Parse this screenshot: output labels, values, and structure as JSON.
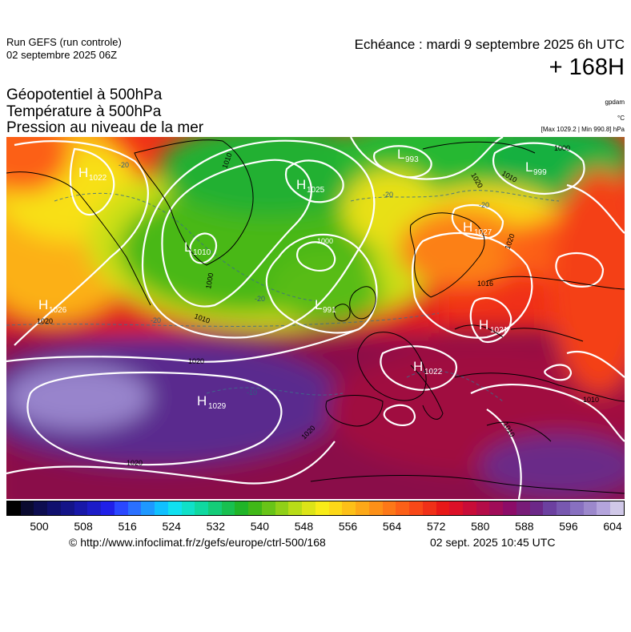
{
  "header": {
    "run_title": "Run GEFS (run controle)",
    "run_date": "02 septembre 2025 06Z",
    "echeance": "Echéance : mardi 9 septembre 2025 6h UTC",
    "lead_time": "+ 168H",
    "param_line1": "Géopotentiel à 500hPa",
    "param_line2": "Température à 500hPa",
    "param_line3": "Pression au niveau de la mer",
    "unit_gpdam": "gpdam",
    "unit_celsius": "°C",
    "pressure_range": "[Max 1029.2 | Min 990.8] hPa"
  },
  "map": {
    "pressure_centers": [
      {
        "type": "H",
        "value": "1022"
      },
      {
        "type": "H",
        "value": "1025"
      },
      {
        "type": "H",
        "value": "1029"
      },
      {
        "type": "H",
        "value": "1026"
      },
      {
        "type": "H",
        "value": "1027"
      },
      {
        "type": "H",
        "value": "1021"
      },
      {
        "type": "H",
        "value": "1022"
      },
      {
        "type": "L",
        "value": "1010"
      },
      {
        "type": "L",
        "value": "991"
      },
      {
        "type": "L",
        "value": "993"
      },
      {
        "type": "L",
        "value": "999"
      }
    ],
    "isobar_labels": [
      "1010",
      "1000",
      "1020",
      "1020",
      "1020",
      "1010",
      "1010",
      "1016",
      "1000",
      "1020",
      "1010",
      "1020",
      "1000",
      "1020",
      "1010"
    ],
    "isotherm_labels": [
      "-20",
      "-20",
      "-20",
      "-20",
      "-10",
      "-20"
    ]
  },
  "colorbar": {
    "ticks": [
      "500",
      "508",
      "516",
      "524",
      "532",
      "540",
      "548",
      "556",
      "564",
      "572",
      "580",
      "588",
      "596",
      "604"
    ],
    "colors": [
      "#000000",
      "#0a0a30",
      "#0d0d50",
      "#10106e",
      "#141488",
      "#1818a8",
      "#1c1cc8",
      "#2020e8",
      "#2a48ff",
      "#2a70ff",
      "#1e98ff",
      "#10c0ff",
      "#10e0f0",
      "#10e0c8",
      "#10d8a0",
      "#14cc78",
      "#18c050",
      "#20b428",
      "#40b818",
      "#68c418",
      "#90d018",
      "#b8dc18",
      "#dce418",
      "#f8ec18",
      "#fcd818",
      "#fcc018",
      "#fca818",
      "#fc9018",
      "#fc7818",
      "#fc6018",
      "#f84818",
      "#f03018",
      "#e81818",
      "#dc1028",
      "#c80c38",
      "#b40c48",
      "#a00c58",
      "#8c0c68",
      "#781c78",
      "#6c2888",
      "#6c40a0",
      "#7858b0",
      "#8870c0",
      "#9c88cc",
      "#b4a4dc",
      "#d0c8e8"
    ],
    "units": "gpdam"
  },
  "footer": {
    "source": "© http://www.infoclimat.fr/z/gefs/europe/ctrl-500/168",
    "generated": "02 sept. 2025 10:45 UTC"
  }
}
